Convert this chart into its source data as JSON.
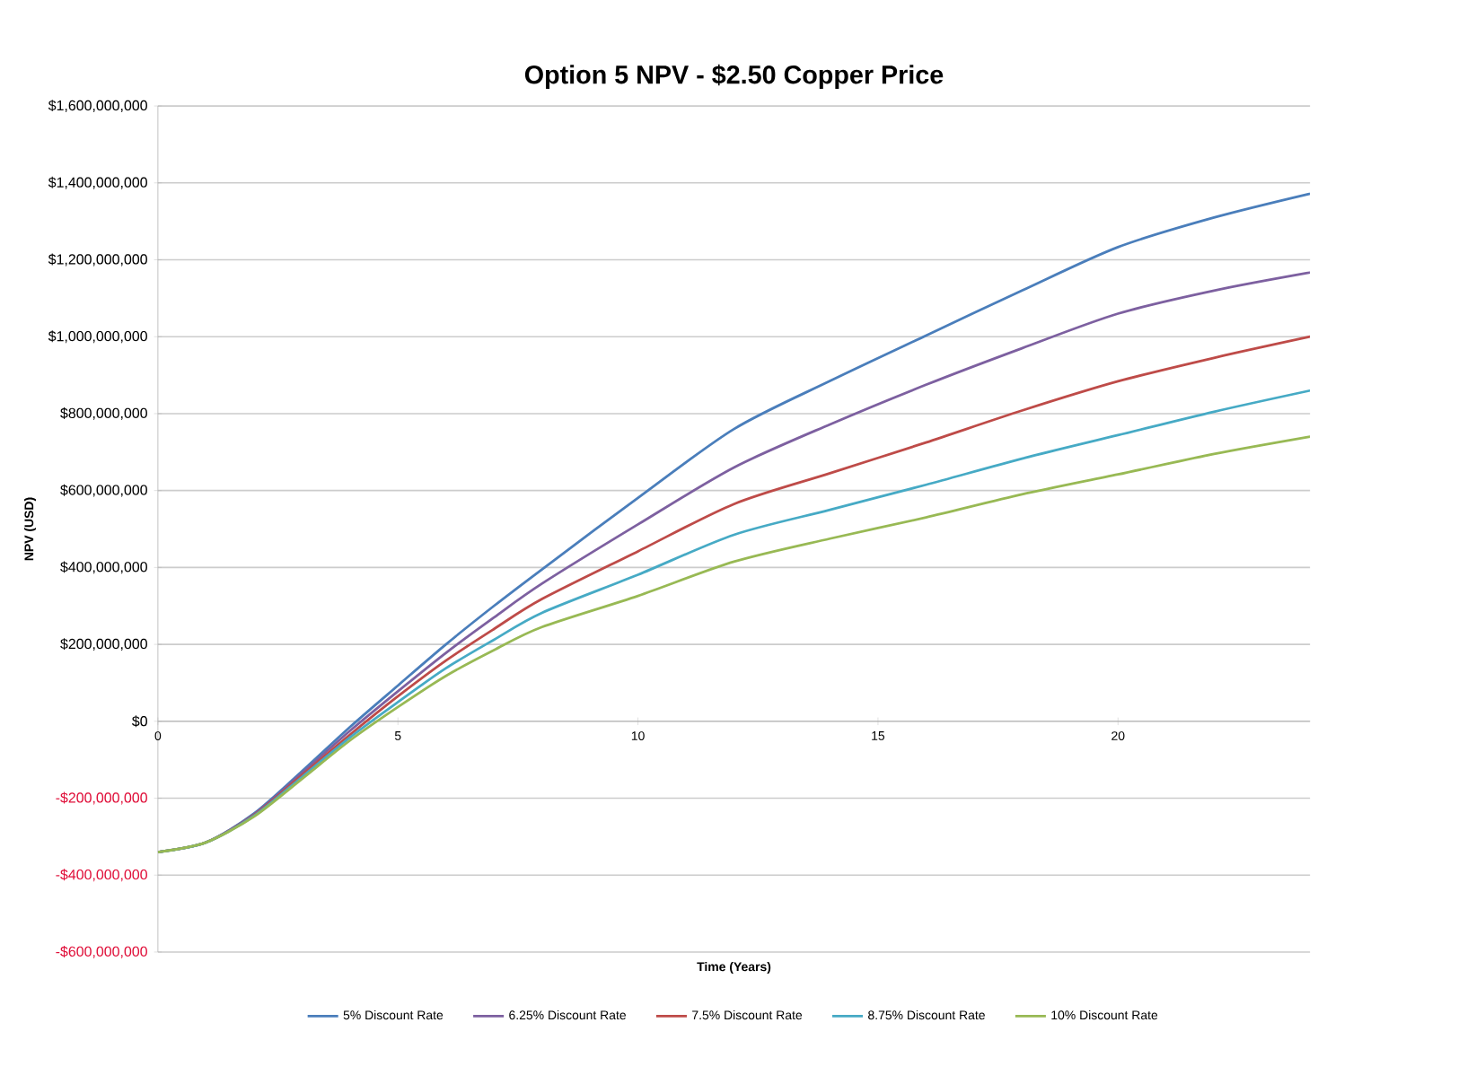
{
  "chart_data": {
    "type": "line",
    "title": "Option 5 NPV - $2.50 Copper Price",
    "xlabel": "Time (Years)",
    "ylabel": "NPV (USD)",
    "x": [
      0,
      1,
      2,
      3,
      4,
      5,
      6,
      7,
      8,
      10,
      12,
      14,
      16,
      18,
      20,
      22,
      24
    ],
    "series": [
      {
        "name": "5% Discount Rate",
        "color": "#4a7ebb",
        "values": [
          -340000000,
          -315000000,
          -240000000,
          -130000000,
          -15000000,
          93000000,
          200000000,
          300000000,
          395000000,
          581000000,
          760000000,
          885000000,
          1003000000,
          1120000000,
          1233000000,
          1310000000,
          1372000000
        ]
      },
      {
        "name": "6.25% Discount Rate",
        "color": "#7d60a0",
        "values": [
          -340000000,
          -315000000,
          -242000000,
          -135000000,
          -25000000,
          78000000,
          178000000,
          270000000,
          358000000,
          512000000,
          660000000,
          772000000,
          875000000,
          970000000,
          1060000000,
          1120000000,
          1167000000
        ]
      },
      {
        "name": "7.5% Discount Rate",
        "color": "#be4b48",
        "values": [
          -340000000,
          -315000000,
          -244000000,
          -140000000,
          -35000000,
          65000000,
          158000000,
          240000000,
          318000000,
          442000000,
          565000000,
          645000000,
          725000000,
          808000000,
          884000000,
          945000000,
          1000000000
        ]
      },
      {
        "name": "8.75% Discount Rate",
        "color": "#46aac5",
        "values": [
          -340000000,
          -315000000,
          -246000000,
          -145000000,
          -42000000,
          50000000,
          138000000,
          212000000,
          282000000,
          381000000,
          485000000,
          550000000,
          615000000,
          683000000,
          744000000,
          805000000,
          860000000
        ]
      },
      {
        "name": "10% Discount Rate",
        "color": "#98b954",
        "values": [
          -340000000,
          -315000000,
          -248000000,
          -150000000,
          -50000000,
          37000000,
          118000000,
          185000000,
          245000000,
          326000000,
          415000000,
          475000000,
          530000000,
          590000000,
          642000000,
          695000000,
          740000000
        ]
      }
    ],
    "xlim": [
      0,
      24
    ],
    "xticks": [
      0,
      5,
      10,
      15,
      20
    ],
    "ylim": [
      -600000000,
      1600000000
    ],
    "yticks": [
      {
        "value": -600000000,
        "label": "-$600,000,000"
      },
      {
        "value": -400000000,
        "label": "-$400,000,000"
      },
      {
        "value": -200000000,
        "label": "-$200,000,000"
      },
      {
        "value": 0,
        "label": "$0"
      },
      {
        "value": 200000000,
        "label": "$200,000,000"
      },
      {
        "value": 400000000,
        "label": "$400,000,000"
      },
      {
        "value": 600000000,
        "label": "$600,000,000"
      },
      {
        "value": 800000000,
        "label": "$800,000,000"
      },
      {
        "value": 1000000000,
        "label": "$1,000,000,000"
      },
      {
        "value": 1200000000,
        "label": "$1,200,000,000"
      },
      {
        "value": 1400000000,
        "label": "$1,400,000,000"
      },
      {
        "value": 1600000000,
        "label": "$1,600,000,000"
      }
    ],
    "grid": "y",
    "legend": "bottom",
    "marker": "none",
    "line_style": "solid"
  }
}
